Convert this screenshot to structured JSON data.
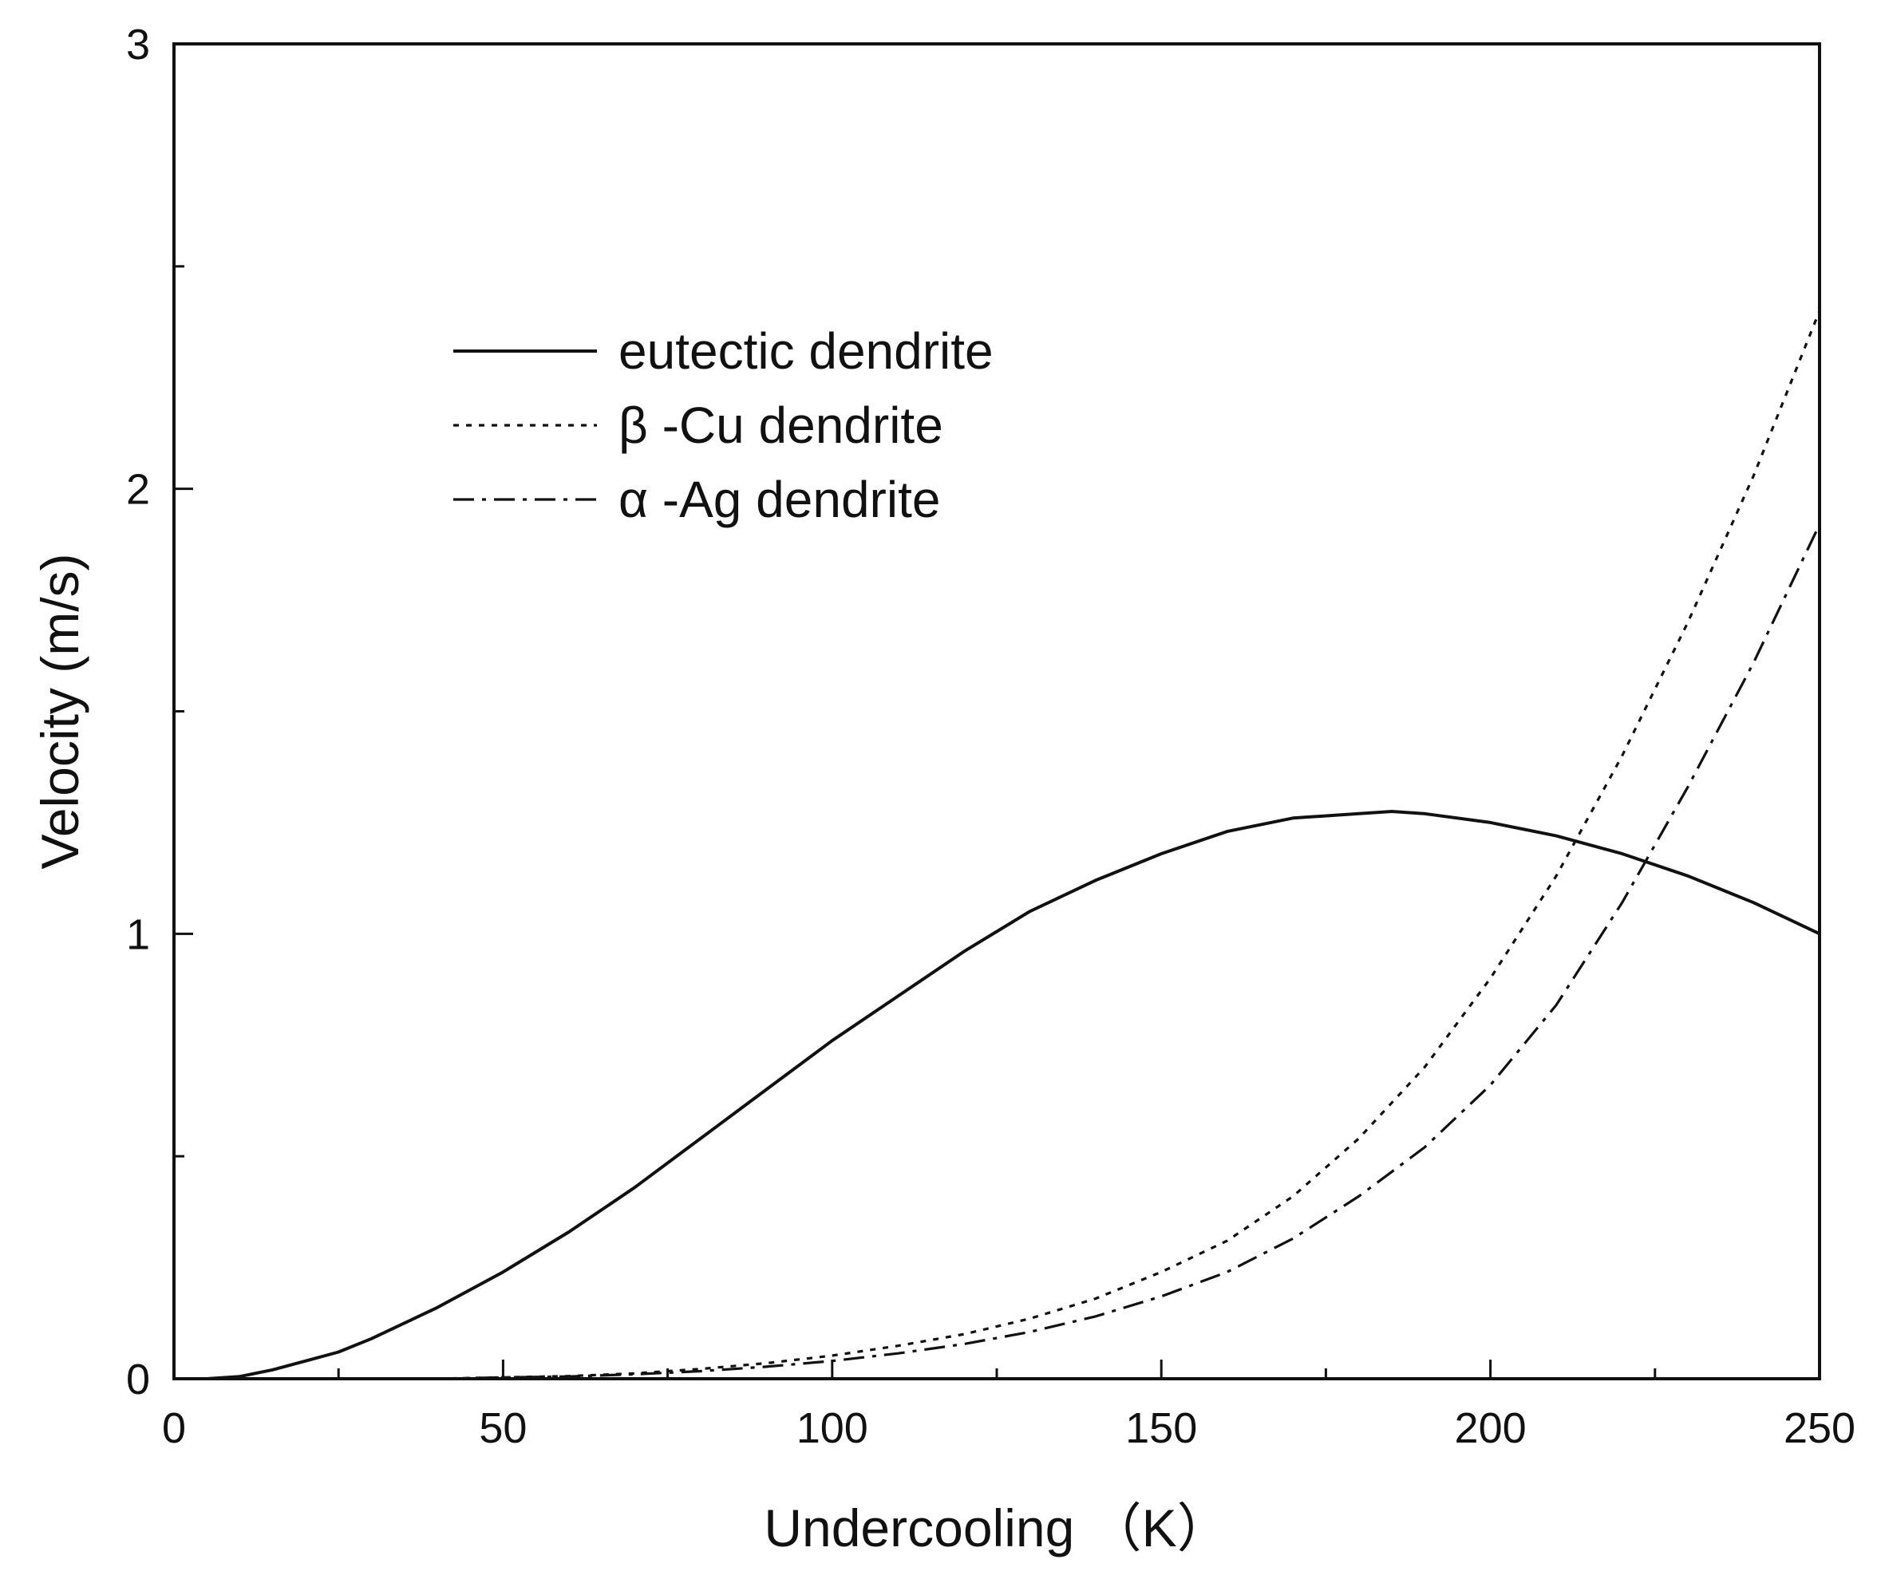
{
  "chart_data": {
    "type": "line",
    "title": "",
    "xlabel": "Undercooling （K）",
    "ylabel": "Velocity (m/s)",
    "xlim": [
      0,
      250
    ],
    "ylim": [
      0,
      3
    ],
    "x_ticks": [
      0,
      50,
      100,
      150,
      200,
      250
    ],
    "y_ticks": [
      0,
      1,
      2,
      3
    ],
    "x_minor_step": 25,
    "y_minor_step": 0.5,
    "grid": false,
    "legend": {
      "placement": "upper-left"
    },
    "series": [
      {
        "name": "eutectic dendrite",
        "style": "solid",
        "x": [
          5,
          10,
          15,
          20,
          25,
          30,
          40,
          50,
          60,
          70,
          80,
          90,
          100,
          110,
          120,
          130,
          140,
          150,
          160,
          170,
          180,
          185,
          190,
          200,
          210,
          220,
          230,
          240,
          250
        ],
        "y": [
          0.0,
          0.005,
          0.02,
          0.04,
          0.06,
          0.09,
          0.16,
          0.24,
          0.33,
          0.43,
          0.54,
          0.65,
          0.76,
          0.86,
          0.96,
          1.05,
          1.12,
          1.18,
          1.23,
          1.26,
          1.27,
          1.275,
          1.27,
          1.25,
          1.22,
          1.18,
          1.13,
          1.07,
          1.0
        ]
      },
      {
        "name": "β -Cu dendrite",
        "style": "dotted",
        "x": [
          40,
          50,
          60,
          70,
          80,
          90,
          100,
          110,
          120,
          130,
          140,
          150,
          160,
          170,
          180,
          190,
          200,
          210,
          220,
          230,
          240,
          250
        ],
        "y": [
          0.0,
          0.003,
          0.006,
          0.012,
          0.022,
          0.035,
          0.052,
          0.074,
          0.1,
          0.135,
          0.18,
          0.24,
          0.31,
          0.41,
          0.54,
          0.7,
          0.9,
          1.13,
          1.4,
          1.7,
          2.03,
          2.4
        ]
      },
      {
        "name": "α -Ag dendrite",
        "style": "dashdot",
        "x": [
          40,
          50,
          60,
          70,
          80,
          90,
          100,
          110,
          120,
          130,
          140,
          150,
          160,
          170,
          180,
          190,
          200,
          210,
          220,
          230,
          240,
          250
        ],
        "y": [
          0.0,
          0.003,
          0.005,
          0.01,
          0.017,
          0.027,
          0.04,
          0.057,
          0.078,
          0.105,
          0.14,
          0.185,
          0.24,
          0.315,
          0.41,
          0.52,
          0.66,
          0.84,
          1.07,
          1.33,
          1.61,
          1.92
        ]
      }
    ]
  }
}
